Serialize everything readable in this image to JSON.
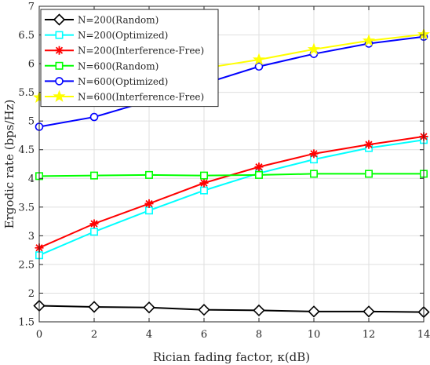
{
  "chart_data": {
    "type": "line",
    "xlabel": "Rician fading factor, κ(dB)",
    "ylabel": "Ergodic rate (bps/Hz)",
    "xlim": [
      0,
      14
    ],
    "ylim": [
      1.5,
      7
    ],
    "xticks": [
      "0",
      "2",
      "4",
      "6",
      "8",
      "10",
      "12",
      "14"
    ],
    "yticks": [
      "1.5",
      "2",
      "2.5",
      "3",
      "3.5",
      "4",
      "4.5",
      "5",
      "5.5",
      "6",
      "6.5",
      "7"
    ],
    "grid": true,
    "legend_position": "top-left",
    "x": [
      0,
      2,
      4,
      6,
      8,
      10,
      12,
      14
    ],
    "series": [
      {
        "name": "N=200(Random)",
        "values": [
          1.78,
          1.76,
          1.75,
          1.71,
          1.7,
          1.68,
          1.68,
          1.67
        ],
        "color": "#000000",
        "marker": "diamond"
      },
      {
        "name": "N=200(Optimized)",
        "values": [
          2.66,
          3.07,
          3.44,
          3.79,
          4.09,
          4.33,
          4.53,
          4.67
        ],
        "color": "#00ffff",
        "marker": "square"
      },
      {
        "name": "N=200(Interference-Free)",
        "values": [
          2.79,
          3.21,
          3.56,
          3.92,
          4.2,
          4.43,
          4.59,
          4.73
        ],
        "color": "#ff0000",
        "marker": "asterisk"
      },
      {
        "name": "N=600(Random)",
        "values": [
          4.04,
          4.05,
          4.06,
          4.05,
          4.06,
          4.08,
          4.08,
          4.08
        ],
        "color": "#00ff00",
        "marker": "square"
      },
      {
        "name": "N=600(Optimized)",
        "values": [
          4.9,
          5.07,
          5.35,
          5.65,
          5.95,
          6.17,
          6.35,
          6.47
        ],
        "color": "#0000ff",
        "marker": "circle"
      },
      {
        "name": "N=600(Interference-Free)",
        "values": [
          5.41,
          5.57,
          5.78,
          5.92,
          6.07,
          6.25,
          6.4,
          6.51
        ],
        "color": "#ffff00",
        "marker": "star"
      }
    ]
  }
}
